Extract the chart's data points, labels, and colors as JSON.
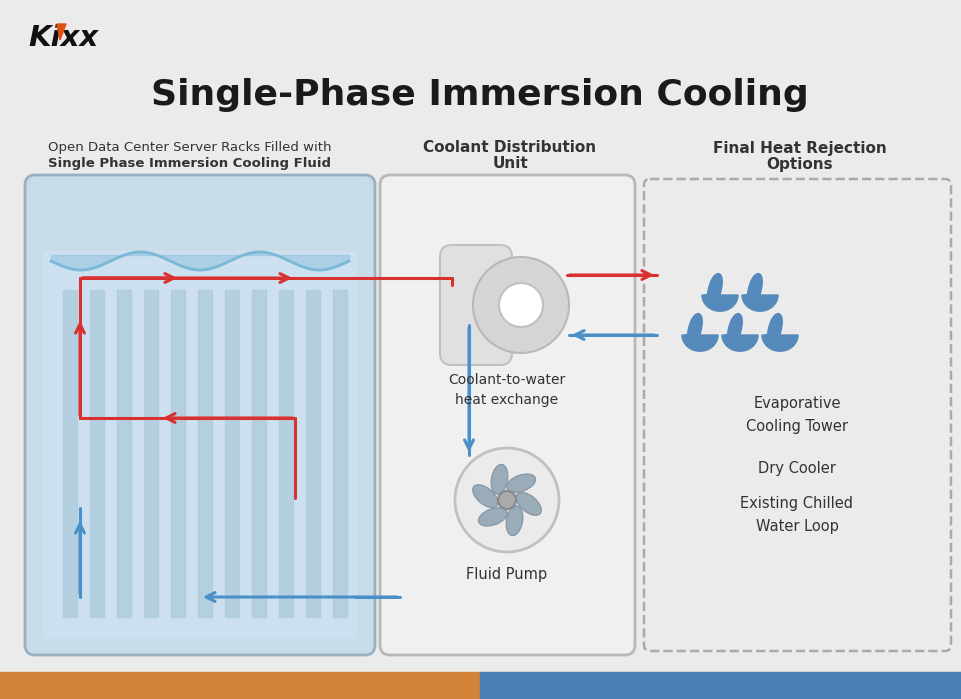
{
  "title": "Single-Phase Immersion Cooling",
  "bg_color": "#ebebeb",
  "title_color": "#1a1a1a",
  "red_color": "#d93030",
  "blue_color": "#4a90c8",
  "light_blue_fill": "#cce0f0",
  "tank_outer_fill": "#c8dce8",
  "tank_border": "#9ab0c0",
  "cdu_border": "#b8b8b8",
  "cdu_fill": "#f0f0f0",
  "text_color": "#333333",
  "label1_line1": "Open Data Center Server Racks Filled with",
  "label1_line2": "Single Phase Immersion Cooling Fluid",
  "label2_line1": "Coolant Distribution",
  "label2_line2": "Unit",
  "label3_line1": "Final Heat Rejection",
  "label3_line2": "Options",
  "coolant_label": "Coolant-to-water\nheat exchange",
  "pump_label": "Fluid Pump",
  "option1": "Evaporative\nCooling Tower",
  "option2": "Dry Cooler",
  "option3": "Existing Chilled\nWater Loop",
  "footer_color1": "#d4843a",
  "footer_color2": "#4a7fb5",
  "drop_color": "#5588bb",
  "hx_fill": "#d8d8d8",
  "pump_fill": "#c8c8c8",
  "fin_color": "#b0ccdc",
  "wave_color": "#7ab8d8"
}
